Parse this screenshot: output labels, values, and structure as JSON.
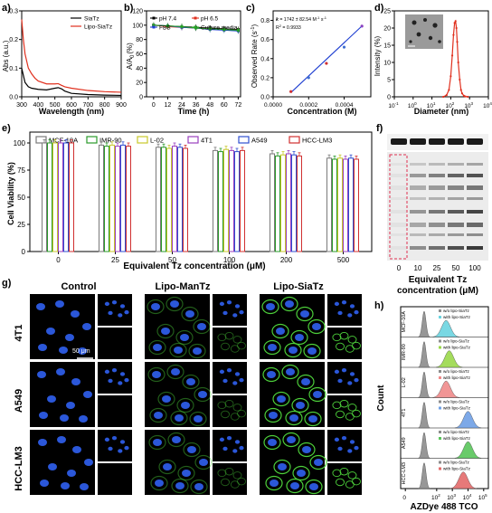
{
  "panel_letters": {
    "a": "a)",
    "b": "b)",
    "c": "c)",
    "d": "d)",
    "e": "e)",
    "f": "f)",
    "g": "g)",
    "h": "h)"
  },
  "colors": {
    "siatz": "#000000",
    "lipo_siatz": "#e0301e",
    "ph74": "#000000",
    "ph65": "#e0301e",
    "fbs": "#1f3fd1",
    "culture": "#25a125",
    "mcf10a": "#7a7a7a",
    "imr90": "#2a9a2a",
    "l02": "#c8c82a",
    "t41": "#9a3fbf",
    "a549": "#2f4fd0",
    "hccl3": "#d03030",
    "nucleus": "#2b57d9",
    "membrane": "#4ccf3a",
    "hist_gray": "#8c8c8c",
    "hist_cyan": "#6ad4e0",
    "hist_green": "#9ad84a",
    "hist_pink": "#f08a8a",
    "hist_blue": "#6fa0e6",
    "hist_green2": "#59c55a",
    "hist_red": "#e36a6a"
  },
  "chart_data": [
    {
      "panel": "a",
      "type": "line",
      "xlabel": "Wavelength (nm)",
      "ylabel": "Abs (a.u.)",
      "xlim": [
        300,
        900
      ],
      "ylim": [
        0,
        0.3
      ],
      "xticks": [
        "300",
        "400",
        "500",
        "600",
        "700",
        "800",
        "900"
      ],
      "yticks": [
        "0.0",
        "0.1",
        "0.2",
        "0.3"
      ],
      "legend": [
        "SiaTz",
        "Lipo-SiaTz"
      ],
      "series": [
        {
          "name": "SiaTz",
          "x": [
            300,
            320,
            340,
            360,
            380,
            400,
            450,
            500,
            520,
            540,
            560,
            600,
            700,
            800,
            900
          ],
          "y": [
            0.1,
            0.05,
            0.035,
            0.03,
            0.028,
            0.026,
            0.024,
            0.03,
            0.032,
            0.028,
            0.02,
            0.012,
            0.008,
            0.006,
            0.005
          ]
        },
        {
          "name": "Lipo-SiaTz",
          "x": [
            300,
            310,
            320,
            340,
            360,
            380,
            400,
            450,
            500,
            520,
            540,
            560,
            600,
            700,
            800,
            900
          ],
          "y": [
            0.27,
            0.2,
            0.15,
            0.1,
            0.08,
            0.065,
            0.055,
            0.045,
            0.045,
            0.046,
            0.04,
            0.035,
            0.03,
            0.022,
            0.018,
            0.016
          ]
        }
      ]
    },
    {
      "panel": "b",
      "type": "line",
      "xlabel": "Time (h)",
      "ylabel": "A/A",
      "ylabel_sub": "0",
      "ylabel_unit": "(%)",
      "xlim": [
        -6,
        74
      ],
      "ylim": [
        0,
        120
      ],
      "xticks": [
        "0",
        "12",
        "24",
        "36",
        "48",
        "60",
        "72"
      ],
      "yticks": [
        "0",
        "20",
        "40",
        "60",
        "80",
        "100",
        "120"
      ],
      "legend": [
        "pH 7.4",
        "pH 6.5",
        "FBS",
        "Culture media"
      ],
      "x": [
        0,
        12,
        24,
        36,
        48,
        60,
        72
      ],
      "series": [
        {
          "name": "pH 7.4",
          "values": [
            100,
            99,
            98,
            97,
            96,
            95,
            94
          ]
        },
        {
          "name": "pH 6.5",
          "values": [
            100,
            98,
            97,
            96,
            95,
            94,
            93
          ]
        },
        {
          "name": "FBS",
          "values": [
            100,
            99,
            97,
            96,
            94,
            93,
            92
          ]
        },
        {
          "name": "Culture media",
          "values": [
            100,
            99,
            98,
            96,
            95,
            94,
            93
          ]
        }
      ]
    },
    {
      "panel": "c",
      "type": "scatter",
      "xlabel": "Concentration (M)",
      "ylabel": "Observed Rate (s",
      "ylabel_sup": "-1",
      "ylabel_end": ")",
      "xlim": [
        0,
        0.00055
      ],
      "ylim": [
        0,
        0.9
      ],
      "xticks": [
        "0.0000",
        "0.0002",
        "0.0004"
      ],
      "yticks": [
        "0.0",
        "0.2",
        "0.4",
        "0.6",
        "0.8"
      ],
      "annotation_k": "k",
      "annotation_eq": " = 1742 ± 82.54 M",
      "annotation_eq_sup1": "-1",
      "annotation_eq_mid": " s",
      "annotation_eq_sup2": "-1",
      "annotation_r2": "R",
      "annotation_r2_sup": "2",
      "annotation_r2_val": " = 0.9933",
      "x": [
        0.0001,
        0.0002,
        0.0003,
        0.0004,
        0.0005
      ],
      "y": [
        0.055,
        0.2,
        0.35,
        0.52,
        0.74
      ],
      "fit": {
        "slope": 1742,
        "intercept": -0.13
      }
    },
    {
      "panel": "d",
      "type": "line",
      "xlabel": "Diameter (nm)",
      "ylabel": "Intensity (%)",
      "xscale": "log",
      "xlim": [
        0.1,
        10000
      ],
      "ylim": [
        0,
        25
      ],
      "xticks": [
        "10",
        "10",
        "10",
        "10",
        "10",
        "10"
      ],
      "xtick_exps": [
        "-1",
        "0",
        "1",
        "2",
        "3",
        "4"
      ],
      "yticks": [
        "0",
        "5",
        "10",
        "15",
        "20",
        "25"
      ],
      "x": [
        40,
        60,
        80,
        100,
        120,
        140,
        160,
        180,
        200,
        220,
        250,
        300,
        350,
        400,
        500,
        600,
        800
      ],
      "y": [
        0,
        0.5,
        2,
        6,
        12,
        18,
        21.5,
        22,
        20,
        16,
        10,
        5,
        2,
        1,
        0.3,
        0.1,
        0
      ]
    },
    {
      "panel": "e",
      "type": "bar",
      "xlabel": "Equivalent Tz concentration (μM)",
      "ylabel": "Cell Viability (%)",
      "ylim": [
        0,
        110
      ],
      "categories": [
        "0",
        "25",
        "50",
        "100",
        "200",
        "500"
      ],
      "yticks": [
        "0",
        "25",
        "50",
        "75",
        "100"
      ],
      "series": [
        {
          "name": "MCF-10A",
          "values": [
            100,
            98,
            96,
            93,
            90,
            86
          ]
        },
        {
          "name": "IMR-90",
          "values": [
            100,
            97,
            96,
            92,
            88,
            85
          ]
        },
        {
          "name": "L-02",
          "values": [
            100,
            98,
            95,
            94,
            89,
            86
          ]
        },
        {
          "name": "4T1",
          "values": [
            100,
            97,
            97,
            93,
            90,
            85
          ]
        },
        {
          "name": "A549",
          "values": [
            100,
            98,
            96,
            92,
            89,
            86
          ]
        },
        {
          "name": "HCC-LM3",
          "values": [
            100,
            97,
            95,
            93,
            88,
            85
          ]
        }
      ]
    }
  ],
  "panel_f": {
    "xlabel_line1": "Equivalent Tz",
    "xlabel_line2": "concentration (μM)",
    "lanes": [
      "0",
      "10",
      "25",
      "50",
      "100"
    ],
    "band_intensity": [
      0.05,
      0.45,
      0.6,
      0.75,
      0.85
    ]
  },
  "panel_g": {
    "columns": [
      "Control",
      "Lipo-ManTz",
      "Lipo-SiaTz"
    ],
    "rows": [
      "4T1",
      "A549",
      "HCC-LM3"
    ],
    "scale_bar": "50 μm",
    "membrane_intensity": [
      0,
      0.45,
      1
    ]
  },
  "panel_h": {
    "xlabel": "AZDye 488 TCO",
    "ylabel": "Count",
    "xtick_exps": [
      "2",
      "3",
      "4",
      "5"
    ],
    "xticks_base": [
      "0",
      "10",
      "10",
      "10",
      "10"
    ],
    "rows": [
      {
        "cell": "MCF-10A",
        "legend_without": "w/o lipo-SiaTz",
        "legend_with": "with lipo-SiaTz",
        "shift": 2.6,
        "color": "#6ad4e0"
      },
      {
        "cell": "IMR-90",
        "legend_without": "w/o lipo-SiaTz",
        "legend_with": "with lipo-SiaTz",
        "shift": 2.8,
        "color": "#9ad84a"
      },
      {
        "cell": "L-02",
        "legend_without": "w/o lipo-SiaTz",
        "legend_with": "with lipo-SiaTz",
        "shift": 2.6,
        "color": "#f08a8a"
      },
      {
        "cell": "4T1",
        "legend_without": "w/o lipo-SiaTz",
        "legend_with": "with lipo-SiaTz",
        "shift": 4.0,
        "color": "#6fa0e6"
      },
      {
        "cell": "A549",
        "legend_without": "w/o lipo-SiaTz",
        "legend_with": "with lipo-SiaTz",
        "shift": 4.0,
        "color": "#59c55a"
      },
      {
        "cell": "HCC-LM3",
        "legend_without": "w/o lipo-SiaTz",
        "legend_with": "with lipo-SiaTz",
        "shift": 3.7,
        "color": "#e36a6a"
      }
    ]
  }
}
